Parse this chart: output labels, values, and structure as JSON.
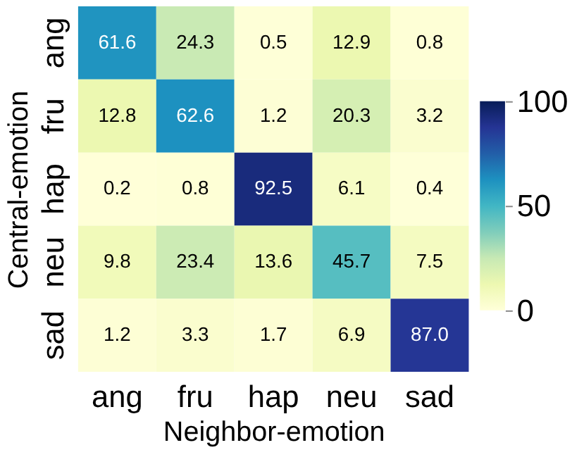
{
  "chart_data": {
    "type": "heatmap",
    "xlabel": "Neighbor-emotion",
    "ylabel": "Central-emotion",
    "categories": [
      "ang",
      "fru",
      "hap",
      "neu",
      "sad"
    ],
    "y_categories": [
      "ang",
      "fru",
      "hap",
      "neu",
      "sad"
    ],
    "cells": [
      [
        61.6,
        24.3,
        0.5,
        12.9,
        0.8
      ],
      [
        12.8,
        62.6,
        1.2,
        20.3,
        3.2
      ],
      [
        0.2,
        0.8,
        92.5,
        6.1,
        0.4
      ],
      [
        9.8,
        23.4,
        13.6,
        45.7,
        7.5
      ],
      [
        1.2,
        3.3,
        1.7,
        6.9,
        87.0
      ]
    ],
    "cell_labels": [
      [
        "61.6",
        "24.3",
        "0.5",
        "12.9",
        "0.8"
      ],
      [
        "12.8",
        "62.6",
        "1.2",
        "20.3",
        "3.2"
      ],
      [
        "0.2",
        "0.8",
        "92.5",
        "6.1",
        "0.4"
      ],
      [
        "9.8",
        "23.4",
        "13.6",
        "45.7",
        "7.5"
      ],
      [
        "1.2",
        "3.3",
        "1.7",
        "6.9",
        "87.0"
      ]
    ],
    "clim": [
      0,
      100
    ],
    "cticks": [
      0,
      50,
      100
    ]
  }
}
